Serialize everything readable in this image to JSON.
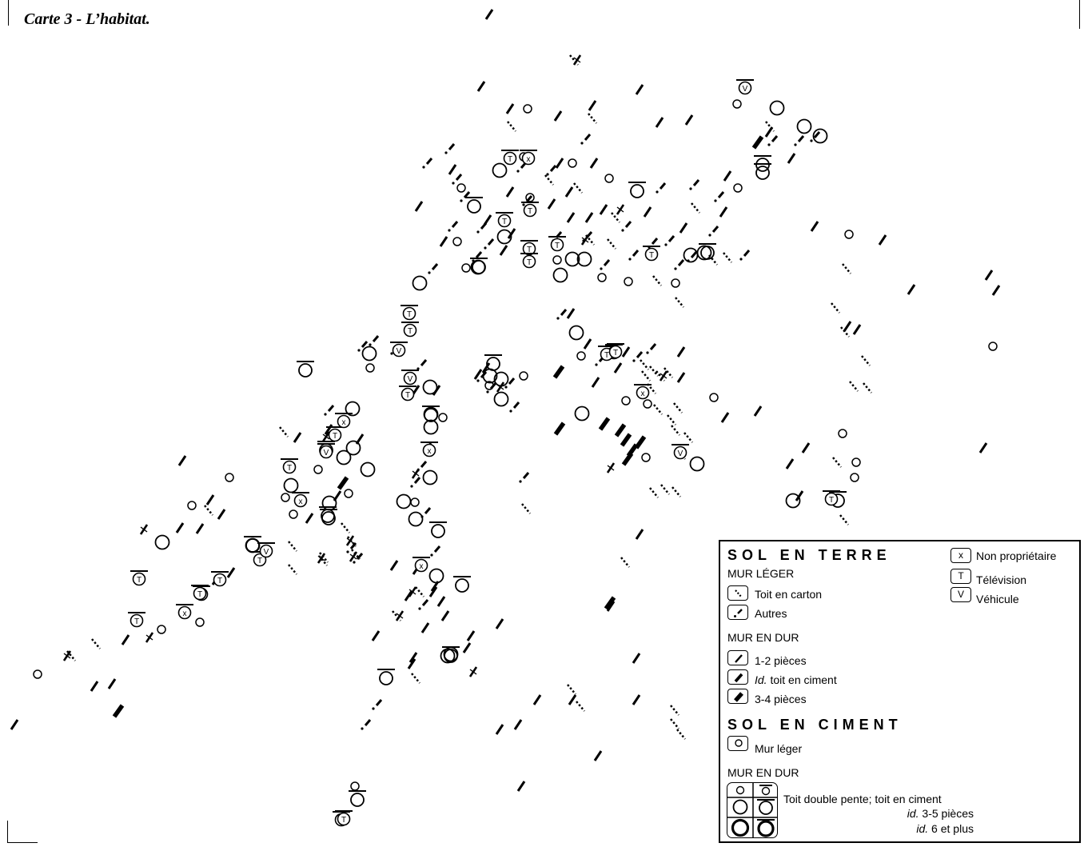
{
  "title": "Carte 3 - L’habitat.",
  "legend": {
    "sol_terre": {
      "heading": "SOL EN TERRE",
      "mur_leger": {
        "heading": "MUR LÉGER",
        "items": [
          {
            "symbol": "dotted-dash",
            "label": "Toit en carton"
          },
          {
            "symbol": "dot-dash",
            "label": "Autres"
          }
        ]
      },
      "mur_dur": {
        "heading": "MUR EN DUR",
        "items": [
          {
            "symbol": "thin-dash",
            "label": "1-2 pièces"
          },
          {
            "symbol": "medium-dash",
            "label_italic": "Id.",
            "label_rest": " toit en ciment"
          },
          {
            "symbol": "thick-dash",
            "label": "3-4 pièces"
          }
        ]
      }
    },
    "attributes": [
      {
        "letter": "x",
        "label": "Non propriétaire"
      },
      {
        "letter": "T",
        "label": "Télévision"
      },
      {
        "letter": "V",
        "label": "Véhicule"
      }
    ],
    "sol_ciment": {
      "heading": "SOL EN CIMENT",
      "mur_leger": {
        "symbol": "small-circle",
        "label": "Mur léger"
      },
      "mur_dur": {
        "heading": "MUR EN DUR",
        "rows": [
          {
            "label": "Toit double pente; toit en ciment"
          },
          {
            "label_italic": "id.",
            "label_rest": " 3-5 pièces"
          },
          {
            "label_italic": "id.",
            "label_rest": " 6 et plus"
          }
        ]
      }
    }
  },
  "map": {
    "icons": [
      "dash-symbol",
      "dotted-dash-symbol",
      "dot-dash-symbol",
      "thick-dash-symbol",
      "circle-symbol",
      "circle-with-roof-symbol",
      "circle-with-letter-symbol"
    ],
    "houses": [
      {
        "type": "dash"
      },
      {
        "type": "dash"
      },
      {
        "type": "dash"
      },
      {
        "type": "dash"
      },
      {
        "type": "dash"
      },
      {
        "type": "dash"
      },
      {
        "type": "dash"
      },
      {
        "type": "dash"
      },
      {
        "type": "dash"
      },
      {
        "type": "dash"
      },
      {
        "type": "dash"
      },
      {
        "type": "dash"
      },
      {
        "type": "dash"
      },
      {
        "type": "dash"
      },
      {
        "type": "dash"
      },
      {
        "type": "dash"
      },
      {
        "type": "dash"
      },
      {
        "type": "dash"
      },
      {
        "type": "dash"
      },
      {
        "type": "dash"
      },
      {
        "type": "dash"
      },
      {
        "type": "dash"
      },
      {
        "type": "dash"
      },
      {
        "type": "dash"
      },
      {
        "type": "dash"
      },
      {
        "type": "dash"
      },
      {
        "type": "dash"
      },
      {
        "type": "dash"
      },
      {
        "type": "dash"
      },
      {
        "type": "dash"
      },
      {
        "type": "dash"
      },
      {
        "type": "dash"
      },
      {
        "type": "dash"
      },
      {
        "type": "dash"
      },
      {
        "type": "dash"
      },
      {
        "type": "dash"
      },
      {
        "type": "dash"
      },
      {
        "type": "dash"
      },
      {
        "type": "dash"
      },
      {
        "type": "dash"
      },
      {
        "type": "dash"
      },
      {
        "type": "dash"
      },
      {
        "type": "dash"
      },
      {
        "type": "dash"
      },
      {
        "type": "dash"
      },
      {
        "type": "dash"
      },
      {
        "type": "dash"
      },
      {
        "type": "dash"
      },
      {
        "type": "dash"
      },
      {
        "type": "dash"
      },
      {
        "type": "dash"
      },
      {
        "type": "dash"
      },
      {
        "type": "dash"
      },
      {
        "type": "dash"
      },
      {
        "type": "dash"
      },
      {
        "type": "dash"
      },
      {
        "type": "dash"
      },
      {
        "type": "dash"
      },
      {
        "type": "dash"
      },
      {
        "type": "dash"
      },
      {
        "type": "dash"
      },
      {
        "type": "dash"
      },
      {
        "type": "dash"
      },
      {
        "type": "dash"
      },
      {
        "type": "dash"
      },
      {
        "type": "dash"
      },
      {
        "type": "dash"
      },
      {
        "type": "dash"
      },
      {
        "type": "dash"
      },
      {
        "type": "dash"
      },
      {
        "type": "dash"
      },
      {
        "type": "dash"
      },
      {
        "type": "dash"
      },
      {
        "type": "dash"
      },
      {
        "type": "dash"
      },
      {
        "type": "dash"
      },
      {
        "type": "dash"
      },
      {
        "type": "dash"
      },
      {
        "type": "dash"
      },
      {
        "type": "dash"
      },
      {
        "type": "dash"
      },
      {
        "type": "dash"
      },
      {
        "type": "dash"
      },
      {
        "type": "dash"
      },
      {
        "type": "dash"
      },
      {
        "type": "dash"
      },
      {
        "type": "dash"
      },
      {
        "type": "dash"
      },
      {
        "type": "dash"
      },
      {
        "type": "dash"
      },
      {
        "type": "dash"
      },
      {
        "type": "dash"
      },
      {
        "type": "dash"
      },
      {
        "type": "thick"
      },
      {
        "type": "thick"
      },
      {
        "type": "thick"
      },
      {
        "type": "thick"
      },
      {
        "type": "thick"
      },
      {
        "type": "thick"
      },
      {
        "type": "thick"
      },
      {
        "type": "thick"
      },
      {
        "type": "thick"
      },
      {
        "type": "thick"
      },
      {
        "type": "thick"
      },
      {
        "type": "thick"
      },
      {
        "type": "dotted"
      },
      {
        "type": "dotted"
      },
      {
        "type": "dotted"
      },
      {
        "type": "dotted"
      },
      {
        "type": "dotted"
      },
      {
        "type": "dotted"
      },
      {
        "type": "dotted"
      },
      {
        "type": "dotted"
      },
      {
        "type": "dotted"
      },
      {
        "type": "dotted"
      },
      {
        "type": "dotted"
      },
      {
        "type": "dotted"
      },
      {
        "type": "dotted"
      },
      {
        "type": "dotted"
      },
      {
        "type": "dotted"
      },
      {
        "type": "dotted"
      },
      {
        "type": "dotted"
      },
      {
        "type": "dotted"
      },
      {
        "type": "dotted"
      },
      {
        "type": "dotted"
      },
      {
        "type": "dotted"
      },
      {
        "type": "dotted"
      },
      {
        "type": "dotted"
      },
      {
        "type": "dotted"
      },
      {
        "type": "dotted"
      },
      {
        "type": "dotted"
      },
      {
        "type": "dotted"
      },
      {
        "type": "dotted"
      },
      {
        "type": "dotted"
      },
      {
        "type": "dotted"
      },
      {
        "type": "dotted"
      },
      {
        "type": "dotted"
      },
      {
        "type": "dotted"
      },
      {
        "type": "dotted"
      },
      {
        "type": "dotted"
      },
      {
        "type": "dotted"
      },
      {
        "type": "dotted"
      },
      {
        "type": "dotted"
      },
      {
        "type": "dotted"
      },
      {
        "type": "dotted"
      },
      {
        "type": "dotted"
      },
      {
        "type": "dotted"
      },
      {
        "type": "dotted"
      },
      {
        "type": "dotted"
      },
      {
        "type": "dotted"
      },
      {
        "type": "dotted"
      },
      {
        "type": "dotted"
      },
      {
        "type": "dotted"
      },
      {
        "type": "dotted"
      },
      {
        "type": "dotted"
      },
      {
        "type": "dotted"
      },
      {
        "type": "dotted"
      },
      {
        "type": "dotted"
      },
      {
        "type": "dotted"
      },
      {
        "type": "dotted"
      },
      {
        "type": "dotted"
      },
      {
        "type": "dotted"
      },
      {
        "type": "dotted"
      },
      {
        "type": "dotdash"
      },
      {
        "type": "dotdash"
      },
      {
        "type": "dotdash"
      },
      {
        "type": "dotdash"
      },
      {
        "type": "dotdash"
      },
      {
        "type": "dotdash"
      },
      {
        "type": "dotdash"
      },
      {
        "type": "dotdash"
      },
      {
        "type": "dotdash"
      },
      {
        "type": "dotdash"
      },
      {
        "type": "dotdash"
      },
      {
        "type": "dotdash"
      },
      {
        "type": "dotdash"
      },
      {
        "type": "dotdash"
      },
      {
        "type": "dotdash"
      },
      {
        "type": "dotdash"
      },
      {
        "type": "dotdash"
      },
      {
        "type": "dotdash"
      },
      {
        "type": "dotdash"
      },
      {
        "type": "dotdash"
      },
      {
        "type": "dotdash"
      },
      {
        "type": "dotdash"
      },
      {
        "type": "dotdash"
      },
      {
        "type": "dotdash"
      },
      {
        "type": "dotdash"
      },
      {
        "type": "dotdash"
      },
      {
        "type": "dotdash"
      },
      {
        "type": "dotdash"
      },
      {
        "type": "dotdash"
      },
      {
        "type": "dotdash"
      },
      {
        "type": "dotdash"
      },
      {
        "type": "dotdash"
      },
      {
        "type": "dotdash"
      },
      {
        "type": "dotdash"
      },
      {
        "type": "dotdash"
      },
      {
        "type": "dotdash"
      },
      {
        "type": "dotdash"
      },
      {
        "type": "dotdash"
      },
      {
        "type": "dotdash"
      },
      {
        "type": "dotdash"
      },
      {
        "type": "dotdash"
      },
      {
        "type": "dotdash"
      },
      {
        "type": "dotdash"
      },
      {
        "type": "dotdash"
      },
      {
        "type": "dotdash"
      },
      {
        "type": "dotdash"
      },
      {
        "type": "dotdash"
      },
      {
        "type": "dotdash"
      },
      {
        "type": "dotdash"
      },
      {
        "type": "dotdash"
      },
      {
        "type": "dotdash"
      },
      {
        "type": "dotdash"
      },
      {
        "type": "dotdash"
      },
      {
        "type": "cross"
      },
      {
        "type": "cross"
      },
      {
        "type": "cross"
      },
      {
        "type": "cross"
      },
      {
        "type": "cross"
      },
      {
        "type": "cross"
      },
      {
        "type": "cross"
      },
      {
        "type": "cross"
      },
      {
        "type": "cross"
      },
      {
        "type": "cross"
      },
      {
        "type": "cross"
      },
      {
        "type": "cross"
      },
      {
        "type": "cross"
      },
      {
        "type": "cross"
      },
      {
        "type": "cross"
      },
      {
        "type": "cross"
      },
      {
        "type": "cross"
      },
      {
        "type": "small"
      },
      {
        "type": "small"
      },
      {
        "type": "small"
      },
      {
        "type": "small"
      },
      {
        "type": "small"
      },
      {
        "type": "small"
      },
      {
        "type": "small"
      },
      {
        "type": "small"
      },
      {
        "type": "small"
      },
      {
        "type": "small"
      },
      {
        "type": "small"
      },
      {
        "type": "small"
      },
      {
        "type": "small"
      },
      {
        "type": "small"
      },
      {
        "type": "small"
      },
      {
        "type": "small"
      },
      {
        "type": "small"
      },
      {
        "type": "small"
      },
      {
        "type": "small"
      },
      {
        "type": "small"
      },
      {
        "type": "small"
      },
      {
        "type": "small"
      },
      {
        "type": "small"
      },
      {
        "type": "small"
      },
      {
        "type": "small"
      },
      {
        "type": "small"
      },
      {
        "type": "small"
      },
      {
        "type": "small"
      },
      {
        "type": "small"
      },
      {
        "type": "small"
      },
      {
        "type": "small"
      },
      {
        "type": "small"
      },
      {
        "type": "small"
      },
      {
        "type": "small"
      },
      {
        "type": "small"
      },
      {
        "type": "small"
      },
      {
        "type": "small"
      },
      {
        "type": "small"
      },
      {
        "type": "small"
      },
      {
        "type": "medium"
      },
      {
        "type": "medium"
      },
      {
        "type": "medium"
      },
      {
        "type": "medium"
      },
      {
        "type": "medium"
      },
      {
        "type": "medium"
      },
      {
        "type": "medium"
      },
      {
        "type": "medium"
      },
      {
        "type": "medium"
      },
      {
        "type": "medium"
      },
      {
        "type": "medium"
      },
      {
        "type": "medium"
      },
      {
        "type": "medium"
      },
      {
        "type": "medium"
      },
      {
        "type": "medium"
      },
      {
        "type": "medium"
      },
      {
        "type": "medium"
      },
      {
        "type": "medium"
      },
      {
        "type": "medium"
      },
      {
        "type": "medium"
      },
      {
        "type": "medium"
      },
      {
        "type": "medium"
      },
      {
        "type": "medium"
      },
      {
        "type": "medium"
      },
      {
        "type": "medium"
      },
      {
        "type": "medium"
      },
      {
        "type": "medium"
      },
      {
        "type": "medium"
      },
      {
        "type": "medium"
      },
      {
        "type": "medium"
      },
      {
        "type": "medium"
      },
      {
        "type": "medium"
      },
      {
        "type": "medium"
      },
      {
        "type": "medium"
      },
      {
        "type": "medium"
      },
      {
        "type": "medium"
      },
      {
        "type": "medium"
      },
      {
        "type": "roof"
      },
      {
        "type": "roof"
      },
      {
        "type": "roof"
      },
      {
        "type": "roof"
      },
      {
        "type": "roof"
      },
      {
        "type": "roof"
      },
      {
        "type": "roof"
      },
      {
        "type": "roof"
      },
      {
        "type": "roof"
      },
      {
        "type": "roof"
      },
      {
        "type": "roof"
      },
      {
        "type": "roof"
      },
      {
        "type": "roof"
      },
      {
        "type": "roof"
      },
      {
        "type": "roof"
      },
      {
        "type": "roof"
      },
      {
        "type": "roof"
      },
      {
        "type": "roof"
      },
      {
        "type": "roof"
      },
      {
        "type": "letter",
        "letter": "T"
      },
      {
        "type": "letter",
        "letter": "T"
      },
      {
        "type": "letter",
        "letter": "T"
      },
      {
        "type": "letter",
        "letter": "T"
      },
      {
        "type": "letter",
        "letter": "T"
      },
      {
        "type": "letter",
        "letter": "T"
      },
      {
        "type": "letter",
        "letter": "T"
      },
      {
        "type": "letter",
        "letter": "T"
      },
      {
        "type": "letter",
        "letter": "T"
      },
      {
        "type": "letter",
        "letter": "T"
      },
      {
        "type": "letter",
        "letter": "T"
      },
      {
        "type": "letter",
        "letter": "T"
      },
      {
        "type": "letter",
        "letter": "T"
      },
      {
        "type": "letter",
        "letter": "T"
      },
      {
        "type": "letter",
        "letter": "T"
      },
      {
        "type": "letter",
        "letter": "T"
      },
      {
        "type": "letter",
        "letter": "T"
      },
      {
        "type": "letter",
        "letter": "T"
      },
      {
        "type": "letter",
        "letter": "T"
      },
      {
        "type": "letter",
        "letter": "T"
      },
      {
        "type": "letter",
        "letter": "T"
      },
      {
        "type": "letter",
        "letter": "T"
      },
      {
        "type": "letter",
        "letter": "T"
      },
      {
        "type": "letter",
        "letter": "T"
      },
      {
        "type": "letter",
        "letter": "V"
      },
      {
        "type": "letter",
        "letter": "V"
      },
      {
        "type": "letter",
        "letter": "V"
      },
      {
        "type": "letter",
        "letter": "V"
      },
      {
        "type": "letter",
        "letter": "V"
      },
      {
        "type": "letter",
        "letter": "V"
      },
      {
        "type": "letter",
        "letter": "x"
      },
      {
        "type": "letter",
        "letter": "x"
      },
      {
        "type": "letter",
        "letter": "x"
      },
      {
        "type": "letter",
        "letter": "x"
      },
      {
        "type": "letter",
        "letter": "x"
      },
      {
        "type": "letter",
        "letter": "x"
      },
      {
        "type": "letter",
        "letter": "x"
      }
    ]
  }
}
